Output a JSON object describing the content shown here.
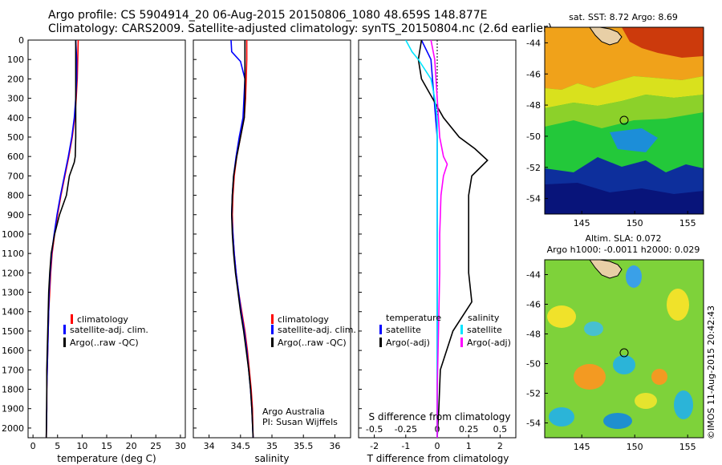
{
  "header": {
    "line1": "Argo profile: CS 5904914_20 06-Aug-2015 20150806_1080 48.659S 148.877E",
    "line2": "Climatology: CARS2009. Satellite-adjusted climatology: synTS_20150804.nc (2.6d earlier)"
  },
  "colors": {
    "climatology": "#ff0000",
    "satellite": "#0000ff",
    "argo": "#000000",
    "salinity_satellite": "#00e5ff",
    "salinity_argo": "#ff00ff"
  },
  "y_axis": {
    "ticks": [
      "0",
      "100",
      "200",
      "300",
      "400",
      "500",
      "600",
      "700",
      "800",
      "900",
      "1000",
      "1100",
      "1200",
      "1300",
      "1400",
      "1500",
      "1600",
      "1700",
      "1800",
      "1900",
      "2000"
    ]
  },
  "chart_data": [
    {
      "type": "line",
      "panel": "temperature",
      "xlabel": "temperature (deg C)",
      "xlim": [
        -1,
        31
      ],
      "xticks": [
        "0",
        "5",
        "10",
        "15",
        "20",
        "25",
        "30"
      ],
      "ylim": [
        2050,
        0
      ],
      "legend": [
        "climatology",
        "satellite-adj. clim.",
        "Argo(..raw -QC)"
      ],
      "series": [
        {
          "name": "climatology",
          "x": [
            9.2,
            9.1,
            9.0,
            8.8,
            8.5,
            8.0,
            7.3,
            6.5,
            5.7,
            5.0,
            4.4,
            3.9,
            3.6,
            3.4,
            3.2,
            3.1,
            3.0,
            2.9,
            2.8,
            2.8,
            2.7
          ],
          "y": [
            0,
            100,
            200,
            300,
            400,
            500,
            600,
            700,
            800,
            900,
            1000,
            1100,
            1200,
            1300,
            1400,
            1500,
            1600,
            1700,
            1800,
            1900,
            2050
          ]
        },
        {
          "name": "satellite-adj. clim.",
          "x": [
            8.7,
            8.9,
            8.9,
            8.7,
            8.4,
            7.9,
            7.2,
            6.4,
            5.6,
            4.9,
            4.3,
            3.8,
            3.5,
            3.3,
            3.2,
            3.1,
            3.0,
            2.9,
            2.8,
            2.8,
            2.7
          ],
          "y": [
            0,
            100,
            200,
            300,
            400,
            500,
            600,
            700,
            800,
            900,
            1000,
            1100,
            1200,
            1300,
            1400,
            1500,
            1600,
            1700,
            1800,
            1900,
            2050
          ]
        },
        {
          "name": "Argo(..raw -QC)",
          "x": [
            8.7,
            8.7,
            8.7,
            8.7,
            8.7,
            8.7,
            8.6,
            8.4,
            7.4,
            6.8,
            5.4,
            4.4,
            3.7,
            3.4,
            3.2,
            3.1,
            3.0,
            2.9,
            2.8,
            2.8,
            2.7
          ],
          "y": [
            0,
            100,
            200,
            300,
            400,
            500,
            600,
            630,
            700,
            800,
            900,
            1000,
            1100,
            1200,
            1300,
            1400,
            1500,
            1600,
            1700,
            1800,
            2050
          ]
        }
      ]
    },
    {
      "type": "line",
      "panel": "salinity",
      "xlabel": "salinity",
      "xlim": [
        33.75,
        36.25
      ],
      "xticks": [
        "34",
        "34.5",
        "35",
        "35.5",
        "36"
      ],
      "ylim": [
        2050,
        0
      ],
      "legend": [
        "climatology",
        "satellite-adj. clim.",
        "Argo(..raw -QC)"
      ],
      "annotations": [
        "Argo Australia",
        "PI: Susan Wijffels"
      ],
      "series": [
        {
          "name": "climatology",
          "x": [
            34.6,
            34.6,
            34.59,
            34.58,
            34.56,
            34.5,
            34.44,
            34.4,
            34.38,
            34.37,
            34.38,
            34.4,
            34.43,
            34.47,
            34.52,
            34.57,
            34.61,
            34.64,
            34.67,
            34.69,
            34.7
          ],
          "y": [
            0,
            100,
            200,
            300,
            400,
            500,
            600,
            700,
            800,
            900,
            1000,
            1100,
            1200,
            1300,
            1400,
            1500,
            1600,
            1700,
            1800,
            1900,
            2050
          ]
        },
        {
          "name": "satellite-adj. clim.",
          "x": [
            34.35,
            34.36,
            34.5,
            34.57,
            34.54,
            34.48,
            34.43,
            34.39,
            34.37,
            34.36,
            34.38,
            34.4,
            34.43,
            34.47,
            34.51,
            34.56,
            34.6,
            34.63,
            34.66,
            34.68,
            34.7
          ],
          "y": [
            0,
            60,
            110,
            200,
            400,
            500,
            600,
            700,
            800,
            900,
            1000,
            1100,
            1200,
            1300,
            1400,
            1500,
            1600,
            1700,
            1800,
            1900,
            2050
          ]
        },
        {
          "name": "Argo(..raw -QC)",
          "x": [
            34.57,
            34.57,
            34.57,
            34.57,
            34.56,
            34.5,
            34.44,
            34.39,
            34.37,
            34.36,
            34.37,
            34.39,
            34.42,
            34.46,
            34.5,
            34.55,
            34.59,
            34.63,
            34.66,
            34.68,
            34.7
          ],
          "y": [
            0,
            100,
            200,
            300,
            400,
            500,
            600,
            700,
            800,
            900,
            1000,
            1100,
            1200,
            1300,
            1400,
            1500,
            1600,
            1700,
            1800,
            1900,
            2050
          ]
        }
      ]
    },
    {
      "type": "line",
      "panel": "differences",
      "xlabel": "T difference from climatology",
      "xticks": [
        "-2",
        "-1",
        "0",
        "1",
        "2"
      ],
      "xlim": [
        -2.5,
        2.5
      ],
      "x2label": "S difference from climatology",
      "x2ticks": [
        "-0.5",
        "-0.25",
        "0",
        "0.25",
        "0.5"
      ],
      "x2lim": [
        -0.625,
        0.625
      ],
      "ylim": [
        2050,
        0
      ],
      "legend_titles": [
        "temperature",
        "salinity"
      ],
      "legend": [
        "satellite",
        "Argo(-adj)",
        "satellite",
        "Argo(-adj)"
      ],
      "series": [
        {
          "name": "satellite",
          "quantity": "temperature",
          "x": [
            -0.5,
            -0.2,
            -0.15,
            -0.1,
            -0.05,
            0,
            0,
            0,
            0,
            0,
            0,
            0,
            0,
            0,
            0,
            0,
            0
          ],
          "y": [
            0,
            100,
            200,
            300,
            400,
            500,
            600,
            700,
            800,
            900,
            1000,
            1200,
            1400,
            1600,
            1800,
            1900,
            2050
          ]
        },
        {
          "name": "Argo(-adj)",
          "quantity": "temperature",
          "x": [
            -0.5,
            -0.6,
            -0.5,
            -0.15,
            0.2,
            0.7,
            1.2,
            1.6,
            1.1,
            1.0,
            1.0,
            1.0,
            1.1,
            0.5,
            0.1,
            0.05,
            0.0
          ],
          "y": [
            0,
            100,
            200,
            300,
            400,
            500,
            560,
            620,
            700,
            800,
            1000,
            1200,
            1350,
            1500,
            1700,
            1900,
            2050
          ]
        },
        {
          "name": "satellite",
          "quantity": "salinity",
          "x": [
            -0.25,
            -0.2,
            -0.15,
            -0.05,
            -0.02,
            0.0,
            0.0,
            0.0,
            0.0,
            0.0,
            0.0,
            0.0,
            0.0
          ],
          "y": [
            0,
            60,
            100,
            200,
            300,
            400,
            500,
            700,
            900,
            1200,
            1500,
            1800,
            2050
          ]
        },
        {
          "name": "Argo(-adj)",
          "quantity": "salinity",
          "x": [
            -0.05,
            -0.02,
            0.0,
            0.02,
            0.05,
            0.08,
            0.05,
            0.03,
            0.02,
            0.02,
            0.01,
            0.0,
            0.0
          ],
          "y": [
            0,
            100,
            300,
            500,
            600,
            640,
            700,
            800,
            1000,
            1200,
            1500,
            1800,
            2050
          ]
        }
      ]
    },
    {
      "type": "heatmap",
      "panel": "sst_map",
      "title": "sat. SST: 8.72  Argo: 8.69",
      "xlim": [
        141.5,
        156.5
      ],
      "ylim": [
        -55,
        -43
      ],
      "xticks": [
        "145",
        "150",
        "155"
      ],
      "yticks": [
        "-44",
        "-46",
        "-48",
        "-50",
        "-52",
        "-54"
      ],
      "marker": {
        "lon": 148.877,
        "lat": -48.659
      }
    },
    {
      "type": "heatmap",
      "panel": "sla_map",
      "title": "Altim. SLA: 0.072",
      "subtitle": "Argo h1000: -0.0011 h2000: 0.029",
      "xlim": [
        141.5,
        156.5
      ],
      "ylim": [
        -55,
        -43
      ],
      "xticks": [
        "145",
        "150",
        "155"
      ],
      "yticks": [
        "-44",
        "-46",
        "-48",
        "-50",
        "-52",
        "-54"
      ],
      "marker": {
        "lon": 148.877,
        "lat": -48.659
      },
      "credit": "©IMOS 11-Aug-2015 20:42:43"
    }
  ]
}
